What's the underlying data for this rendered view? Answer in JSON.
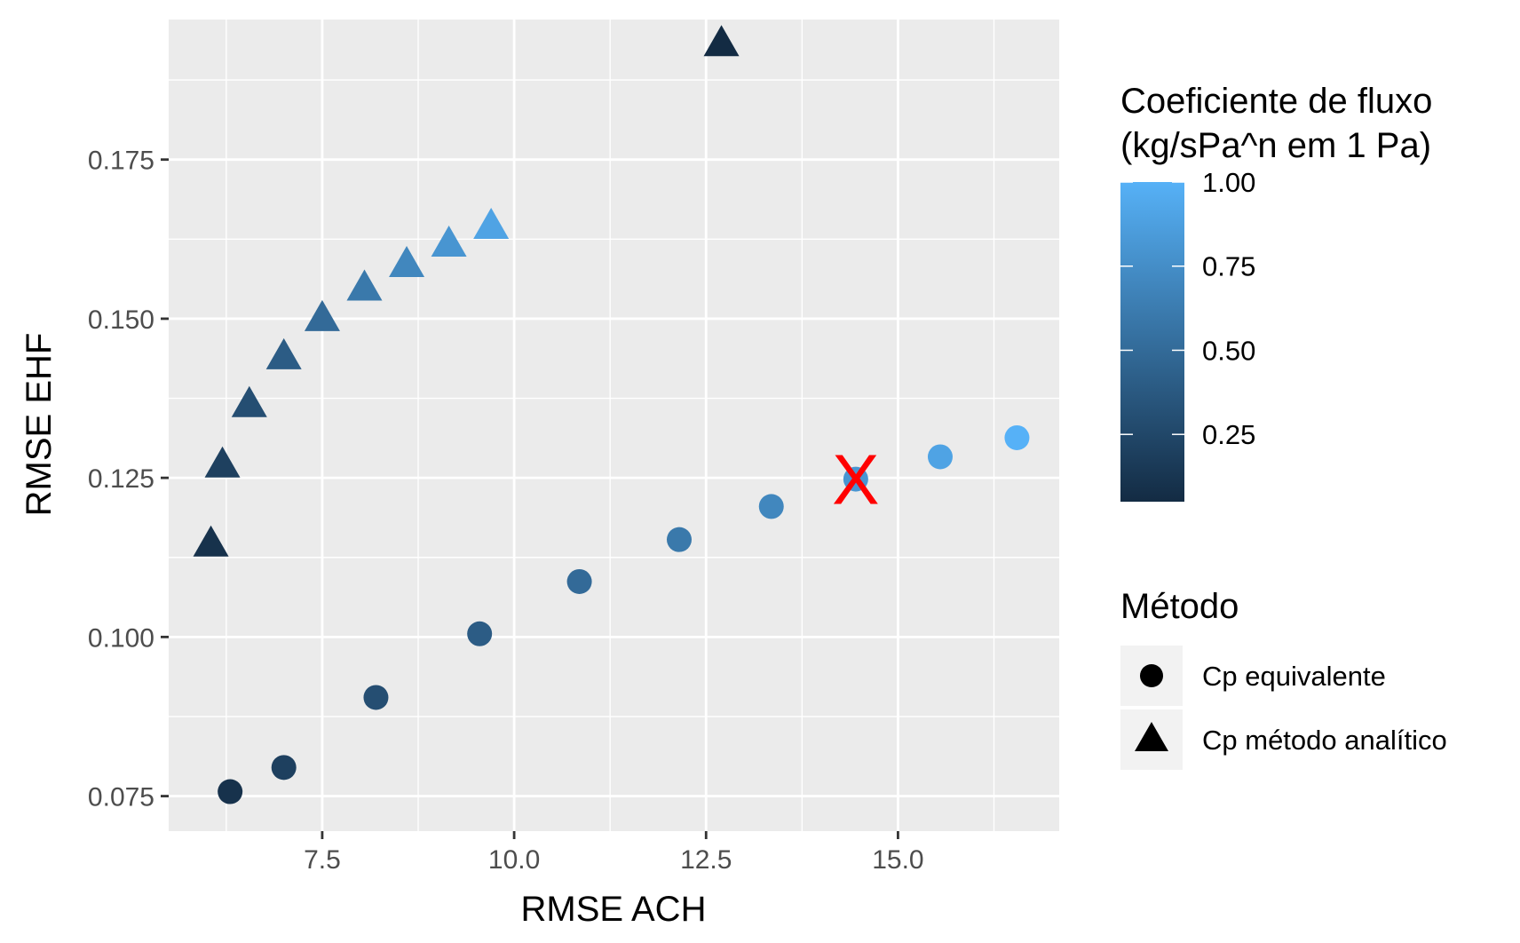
{
  "chart_data": {
    "type": "scatter",
    "title": "",
    "xlabel": "RMSE ACH",
    "ylabel": "RMSE EHF",
    "xlim": [
      5.5,
      17.1
    ],
    "ylim": [
      0.0695,
      0.197
    ],
    "x_ticks": [
      7.5,
      10.0,
      12.5,
      15.0
    ],
    "x_tick_labels": [
      "7.5",
      "10.0",
      "12.5",
      "15.0"
    ],
    "y_ticks": [
      0.075,
      0.1,
      0.125,
      0.15,
      0.175
    ],
    "y_tick_labels": [
      "0.075",
      "0.100",
      "0.125",
      "0.150",
      "0.175"
    ],
    "grid": true,
    "panel_background": "#ebebeb",
    "color_scale": {
      "title_lines": [
        "Coeficiente de fluxo",
        "(kg/sPa^n em 1 Pa)"
      ],
      "low_color": "#132b43",
      "high_color": "#56b1f7",
      "min": 0.05,
      "max": 1.0,
      "ticks": [
        0.25,
        0.5,
        0.75,
        1.0
      ],
      "tick_labels": [
        "0.25",
        "0.50",
        "0.75",
        "1.00"
      ]
    },
    "shape_legend": {
      "title": "Método",
      "entries": [
        {
          "shape": "circle",
          "label": "Cp equivalente"
        },
        {
          "shape": "triangle",
          "label": "Cp método analítico"
        }
      ]
    },
    "series": [
      {
        "shape": "circle",
        "points": [
          {
            "x": 6.3,
            "y": 0.0757,
            "c": 0.1
          },
          {
            "x": 7.0,
            "y": 0.0795,
            "c": 0.2
          },
          {
            "x": 8.2,
            "y": 0.0905,
            "c": 0.3
          },
          {
            "x": 9.55,
            "y": 0.1005,
            "c": 0.4
          },
          {
            "x": 10.85,
            "y": 0.1087,
            "c": 0.5
          },
          {
            "x": 12.15,
            "y": 0.1153,
            "c": 0.6
          },
          {
            "x": 13.35,
            "y": 0.1205,
            "c": 0.7
          },
          {
            "x": 14.45,
            "y": 0.1248,
            "c": 0.8
          },
          {
            "x": 15.55,
            "y": 0.1283,
            "c": 0.9
          },
          {
            "x": 16.55,
            "y": 0.1313,
            "c": 1.0
          }
        ]
      },
      {
        "shape": "triangle",
        "points": [
          {
            "x": 6.05,
            "y": 0.1146,
            "c": 0.1
          },
          {
            "x": 6.2,
            "y": 0.127,
            "c": 0.2
          },
          {
            "x": 6.55,
            "y": 0.1365,
            "c": 0.3
          },
          {
            "x": 7.0,
            "y": 0.144,
            "c": 0.4
          },
          {
            "x": 7.5,
            "y": 0.15,
            "c": 0.5
          },
          {
            "x": 8.05,
            "y": 0.1548,
            "c": 0.6
          },
          {
            "x": 8.6,
            "y": 0.1585,
            "c": 0.7
          },
          {
            "x": 9.15,
            "y": 0.1617,
            "c": 0.8
          },
          {
            "x": 9.7,
            "y": 0.1645,
            "c": 0.9
          },
          {
            "x": 12.7,
            "y": 0.1932,
            "c": 0.05
          }
        ]
      }
    ],
    "annotations": [
      {
        "text": "X",
        "x": 14.45,
        "y": 0.1248,
        "color": "#ff0000"
      }
    ]
  }
}
